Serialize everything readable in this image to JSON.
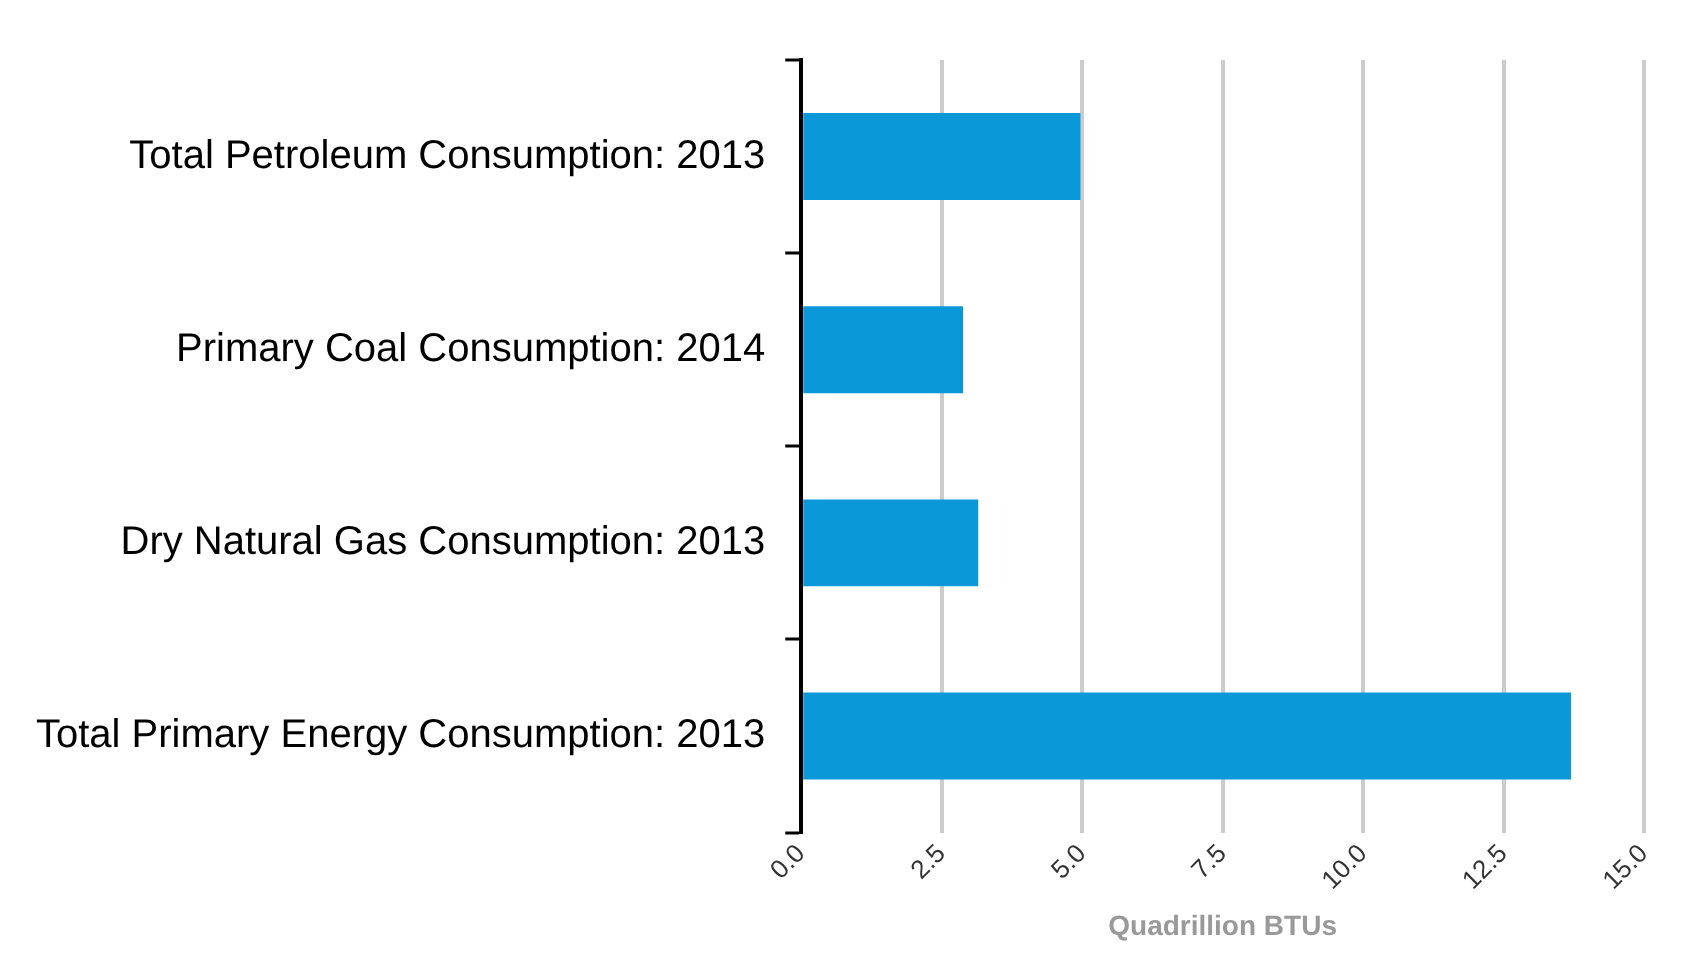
{
  "chart_data": {
    "type": "bar",
    "orientation": "horizontal",
    "categories": [
      "Total Petroleum Consumption: 2013",
      "Primary Coal Consumption: 2014",
      "Dry Natural Gas Consumption: 2013",
      "Total Primary Energy Consumption: 2013"
    ],
    "values": [
      4.97,
      2.88,
      3.15,
      13.7
    ],
    "color": "#0a98d9",
    "xlabel": "Quadrillion BTUs",
    "xlim": [
      0,
      15
    ],
    "xticks": [
      {
        "value": 0,
        "label": "0.0"
      },
      {
        "value": 2.5,
        "label": "2.5"
      },
      {
        "value": 5,
        "label": "5.0"
      },
      {
        "value": 7.5,
        "label": "7.5"
      },
      {
        "value": 10,
        "label": "10.0"
      },
      {
        "value": 12.5,
        "label": "12.5"
      },
      {
        "value": 15,
        "label": "15.0"
      }
    ],
    "grid": "x",
    "legend": false
  }
}
